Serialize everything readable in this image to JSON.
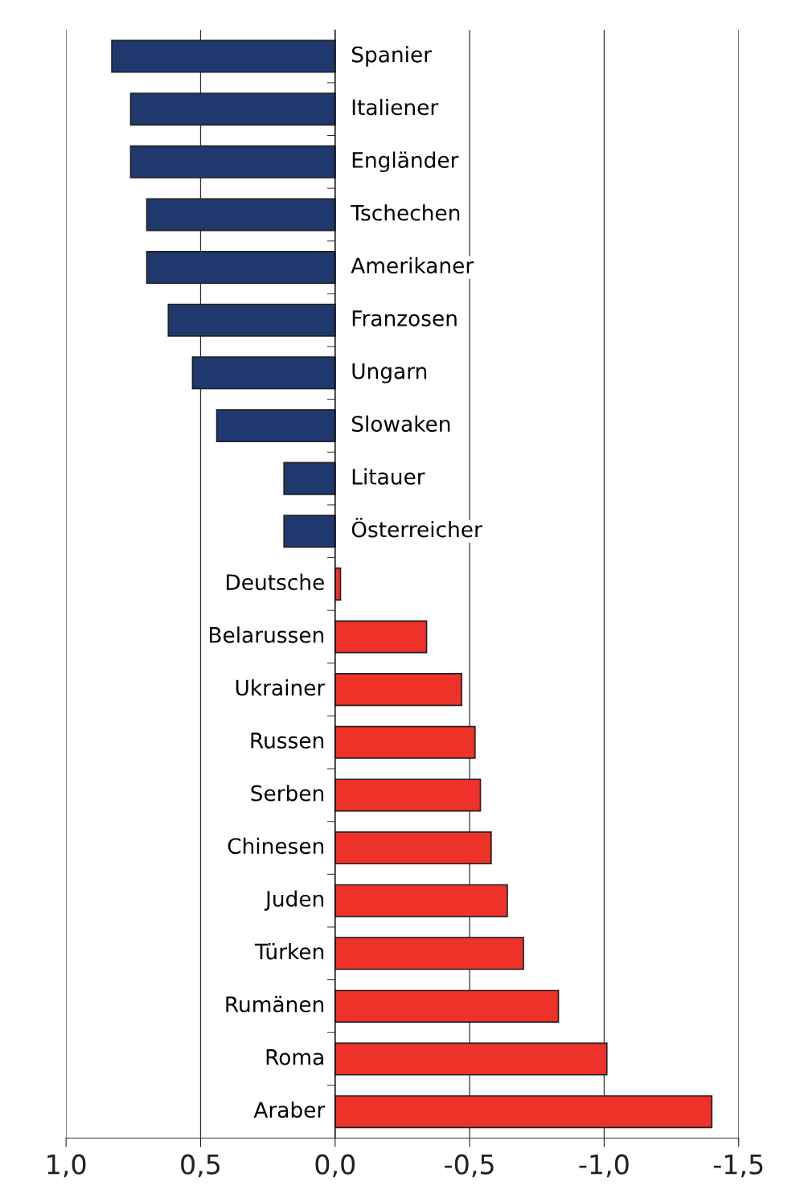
{
  "chart_data": {
    "type": "bar",
    "orientation": "horizontal",
    "categories": [
      "Spanier",
      "Italiener",
      "Engländer",
      "Tschechen",
      "Amerikaner",
      "Franzosen",
      "Ungarn",
      "Slowaken",
      "Litauer",
      "Österreicher",
      "Deutsche",
      "Belarussen",
      "Ukrainer",
      "Russen",
      "Serben",
      "Chinesen",
      "Juden",
      "Türken",
      "Rumänen",
      "Roma",
      "Araber"
    ],
    "values": [
      0.83,
      0.76,
      0.76,
      0.7,
      0.7,
      0.62,
      0.53,
      0.44,
      0.19,
      0.19,
      -0.02,
      -0.34,
      -0.47,
      -0.52,
      -0.54,
      -0.58,
      -0.64,
      -0.7,
      -0.83,
      -1.01,
      -1.4
    ],
    "colors": [
      "#1f386e",
      "#1f386e",
      "#1f386e",
      "#1f386e",
      "#1f386e",
      "#1f386e",
      "#1f386e",
      "#1f386e",
      "#1f386e",
      "#1f386e",
      "#ee3129",
      "#ee3129",
      "#ee3129",
      "#ee3129",
      "#ee3129",
      "#ee3129",
      "#ee3129",
      "#ee3129",
      "#ee3129",
      "#ee3129",
      "#ee3129"
    ],
    "xlim": [
      1.0,
      -1.5
    ],
    "xticks": [
      {
        "value": 1.0,
        "label": "1,0"
      },
      {
        "value": 0.5,
        "label": "0,5"
      },
      {
        "value": 0.0,
        "label": "0,0"
      },
      {
        "value": -0.5,
        "label": "-0,5"
      },
      {
        "value": -1.0,
        "label": "-1,0"
      },
      {
        "value": -1.5,
        "label": "-1,5"
      }
    ],
    "grid": "x"
  }
}
